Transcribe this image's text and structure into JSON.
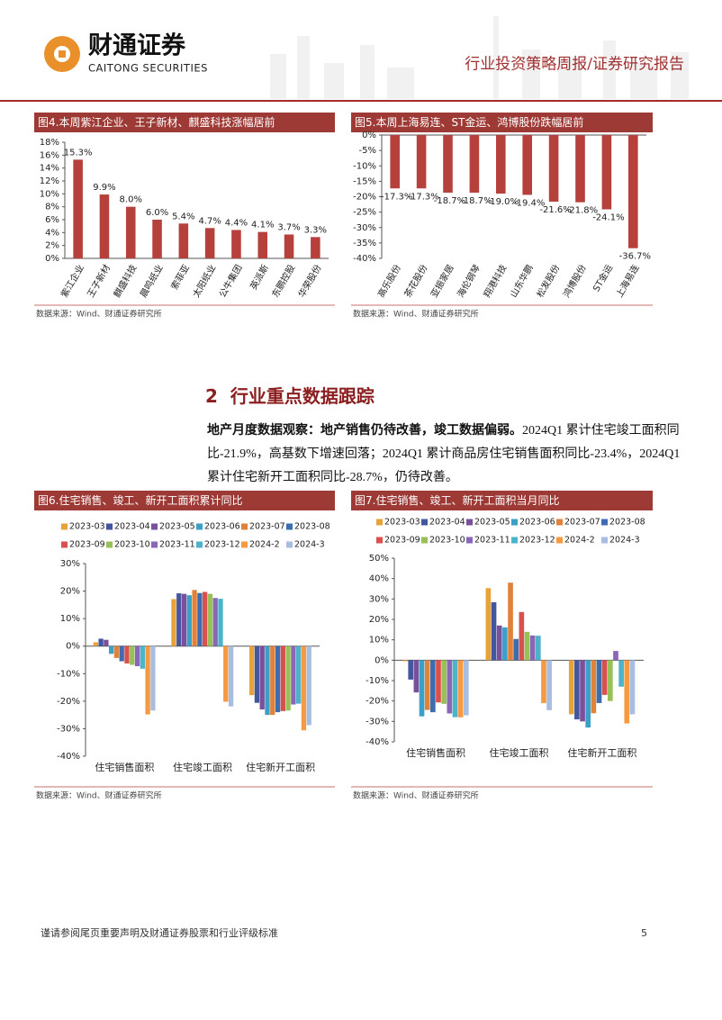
{
  "header": {
    "logo_cn": "财通证券",
    "logo_en": "CAITONG SECURITIES",
    "report_type": "行业投资策略周报/证券研究报告"
  },
  "chart_data": [
    {
      "type": "bar",
      "title": "图4.本周紫江企业、王子新材、麒盛科技涨幅居前",
      "categories": [
        "紫江企业",
        "王子新材",
        "麒盛科技",
        "晨鸣纸业",
        "索菲亚",
        "太阳纸业",
        "公牛集团",
        "英派斯",
        "东鹏控股",
        "华荣股份"
      ],
      "values": [
        15.3,
        9.9,
        8.0,
        6.0,
        5.4,
        4.7,
        4.4,
        4.1,
        3.7,
        3.3
      ],
      "value_labels": [
        "15.3%",
        "9.9%",
        "8.0%",
        "6.0%",
        "5.4%",
        "4.7%",
        "4.4%",
        "4.1%",
        "3.7%",
        "3.3%"
      ],
      "color": "#b5403c",
      "ylim": [
        0,
        18
      ],
      "yticks": [
        {
          "value": 0,
          "label": "0%"
        },
        {
          "value": 2,
          "label": "2%"
        },
        {
          "value": 4,
          "label": "4%"
        },
        {
          "value": 6,
          "label": "6%"
        },
        {
          "value": 8,
          "label": "8%"
        },
        {
          "value": 10,
          "label": "10%"
        },
        {
          "value": 12,
          "label": "12%"
        },
        {
          "value": 14,
          "label": "14%"
        },
        {
          "value": 16,
          "label": "16%"
        },
        {
          "value": 18,
          "label": "18%"
        }
      ],
      "source": "数据来源：Wind、财通证券研究所"
    },
    {
      "type": "bar",
      "title": "图5.本周上海易连、ST金运、鸿博股份跌幅居前",
      "categories": [
        "高乐股份",
        "茶花股份",
        "亚振家居",
        "海伦钢琴",
        "翔港科技",
        "山东华鹏",
        "松发股份",
        "鸿博股份",
        "ST金运",
        "上海易连"
      ],
      "values": [
        -17.3,
        -17.3,
        -18.7,
        -18.7,
        -19.0,
        -19.4,
        -21.6,
        -21.8,
        -24.1,
        -36.7
      ],
      "value_labels": [
        "-17.3%",
        "-17.3%",
        "-18.7%",
        "-18.7%",
        "-19.0%",
        "-19.4%",
        "-21.6%",
        "-21.8%",
        "-24.1%",
        "-36.7%"
      ],
      "color": "#b5403c",
      "ylim": [
        -40,
        0
      ],
      "yticks": [
        {
          "value": 0,
          "label": "0%"
        },
        {
          "value": -5,
          "label": "-5%"
        },
        {
          "value": -10,
          "label": "-10%"
        },
        {
          "value": -15,
          "label": "-15%"
        },
        {
          "value": -20,
          "label": "-20%"
        },
        {
          "value": -25,
          "label": "-25%"
        },
        {
          "value": -30,
          "label": "-30%"
        },
        {
          "value": -35,
          "label": "-35%"
        },
        {
          "value": -40,
          "label": "-40%"
        }
      ],
      "source": "数据来源：Wind、财通证券研究所"
    },
    {
      "type": "grouped-bar",
      "title": "图6.住宅销售、竣工、新开工面积累计同比",
      "categories": [
        "住宅销售面积",
        "住宅竣工面积",
        "住宅新开工面积"
      ],
      "series": [
        {
          "name": "2023-03",
          "color": "#e8a23a",
          "values": [
            1.4,
            17.1,
            -17.8
          ]
        },
        {
          "name": "2023-04",
          "color": "#43579f",
          "values": [
            2.7,
            19.2,
            -20.6
          ]
        },
        {
          "name": "2023-05",
          "color": "#7a4f9c",
          "values": [
            2.3,
            19.0,
            -23.0
          ]
        },
        {
          "name": "2023-06",
          "color": "#3aa0c8",
          "values": [
            -2.8,
            18.5,
            -25.0
          ]
        },
        {
          "name": "2023-07",
          "color": "#e0823a",
          "values": [
            -4.3,
            20.4,
            -25.0
          ]
        },
        {
          "name": "2023-08",
          "color": "#3d6cb0",
          "values": [
            -5.5,
            19.3,
            -24.0
          ]
        },
        {
          "name": "2023-09",
          "color": "#d9514e",
          "values": [
            -6.3,
            19.7,
            -23.6
          ]
        },
        {
          "name": "2023-10",
          "color": "#97c157",
          "values": [
            -6.8,
            19.0,
            -23.4
          ]
        },
        {
          "name": "2023-11",
          "color": "#8a66b6",
          "values": [
            -7.3,
            17.5,
            -21.2
          ]
        },
        {
          "name": "2023-12",
          "color": "#4db3c9",
          "values": [
            -8.2,
            17.2,
            -20.9
          ]
        },
        {
          "name": "2024-2",
          "color": "#f59a40",
          "values": [
            -24.8,
            -20.2,
            -30.6
          ]
        },
        {
          "name": "2024-3",
          "color": "#a9bde0",
          "values": [
            -23.4,
            -21.9,
            -28.7
          ]
        }
      ],
      "ylim": [
        -40,
        30
      ],
      "yticks": [
        {
          "value": 30,
          "label": "30%"
        },
        {
          "value": 20,
          "label": "20%"
        },
        {
          "value": 10,
          "label": "10%"
        },
        {
          "value": 0,
          "label": "0%"
        },
        {
          "value": -10,
          "label": "-10%"
        },
        {
          "value": -20,
          "label": "-20%"
        },
        {
          "value": -30,
          "label": "-30%"
        },
        {
          "value": -40,
          "label": "-40%"
        }
      ],
      "source": "数据来源：Wind、财通证券研究所"
    },
    {
      "type": "grouped-bar",
      "title": "图7.住宅销售、竣工、新开工面积当月同比",
      "categories": [
        "住宅销售面积",
        "住宅竣工面积",
        "住宅新开工面积"
      ],
      "series": [
        {
          "name": "2023-03",
          "color": "#e8a23a",
          "values": [
            -0.5,
            35.3,
            -26.5
          ]
        },
        {
          "name": "2023-04",
          "color": "#43579f",
          "values": [
            -9.5,
            28.4,
            -29.0
          ]
        },
        {
          "name": "2023-05",
          "color": "#7a4f9c",
          "values": [
            -15.8,
            17.0,
            -30.0
          ]
        },
        {
          "name": "2023-06",
          "color": "#3aa0c8",
          "values": [
            -27.5,
            16.1,
            -33.0
          ]
        },
        {
          "name": "2023-07",
          "color": "#e0823a",
          "values": [
            -24.4,
            38.0,
            -26.0
          ]
        },
        {
          "name": "2023-08",
          "color": "#3d6cb0",
          "values": [
            -25.5,
            10.4,
            -21.0
          ]
        },
        {
          "name": "2023-09",
          "color": "#d9514e",
          "values": [
            -20.7,
            23.6,
            -17.0
          ]
        },
        {
          "name": "2023-10",
          "color": "#97c157",
          "values": [
            -21.4,
            13.9,
            -20.0
          ]
        },
        {
          "name": "2023-11",
          "color": "#8a66b6",
          "values": [
            -26.1,
            12.1,
            4.5
          ]
        },
        {
          "name": "2023-12",
          "color": "#4db3c9",
          "values": [
            -27.9,
            12.0,
            -13.0
          ]
        },
        {
          "name": "2024-2",
          "color": "#f59a40",
          "values": [
            -28.0,
            -21.0,
            -31.0
          ]
        },
        {
          "name": "2024-3",
          "color": "#a9bde0",
          "values": [
            -27.0,
            -24.5,
            -26.5
          ]
        }
      ],
      "ylim": [
        -40,
        50
      ],
      "yticks": [
        {
          "value": 50,
          "label": "50%"
        },
        {
          "value": 40,
          "label": "40%"
        },
        {
          "value": 30,
          "label": "30%"
        },
        {
          "value": 20,
          "label": "20%"
        },
        {
          "value": 10,
          "label": "10%"
        },
        {
          "value": 0,
          "label": "0%"
        },
        {
          "value": -10,
          "label": "-10%"
        },
        {
          "value": -20,
          "label": "-20%"
        },
        {
          "value": -30,
          "label": "-30%"
        },
        {
          "value": -40,
          "label": "-40%"
        }
      ],
      "source": "数据来源：Wind、财通证券研究所"
    }
  ],
  "section": {
    "number": "2",
    "title": "行业重点数据跟踪"
  },
  "paragraph": {
    "lead": "地产月度数据观察：地产销售仍待改善，竣工数据偏弱。",
    "text": "2024Q1 累计住宅竣工面积同比-21.9%，高基数下增速回落；2024Q1 累计商品房住宅销售面积同比-23.4%，2024Q1 累计住宅新开工面积同比-28.7%，仍待改善。"
  },
  "footer": {
    "disclaimer": "谨请参阅尾页重要声明及财通证券股票和行业评级标准",
    "page": "5"
  }
}
